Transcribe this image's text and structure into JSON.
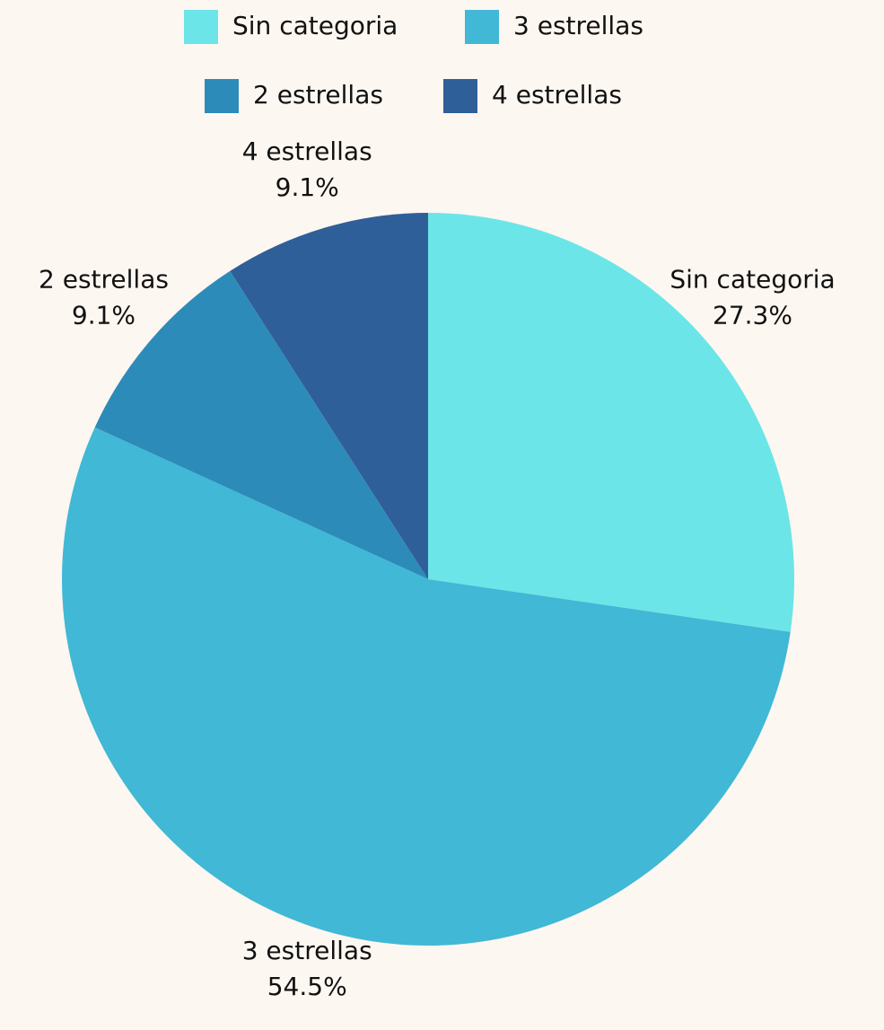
{
  "chart_data": {
    "type": "pie",
    "categories": [
      "Sin categoria",
      "3 estrellas",
      "2 estrellas",
      "4 estrellas"
    ],
    "values": [
      27.3,
      54.5,
      9.1,
      9.1
    ],
    "value_labels": [
      "27.3%",
      "54.5%",
      "9.1%",
      "9.1%"
    ],
    "colors": [
      "#6ce5e8",
      "#41b8d5",
      "#2d8bba",
      "#2f5f98"
    ],
    "legend": "top"
  }
}
